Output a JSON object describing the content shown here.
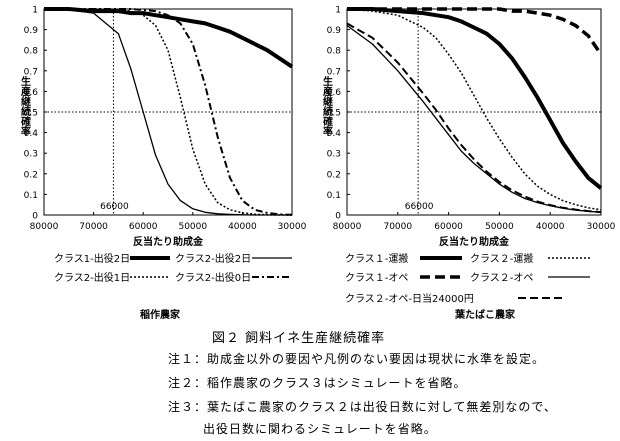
{
  "figure": {
    "title": "図２ 飼料イネ生産継続確率",
    "notes": [
      "注１：助成金以外の要因や凡例のない要因は現状に水準を設定。",
      "注２：稲作農家のクラス３はシミュレートを省略。",
      "注３：葉たばこ農家のクラス２は出役日数に対して無差別なので、",
      "出役日数に関わるシミュレートを省略。"
    ]
  },
  "chart_data": [
    {
      "type": "line",
      "subtitle": "稲作農家",
      "xlabel": "反当たり助成金",
      "ylabel": "生産継続確率",
      "xlim": [
        80000,
        30000
      ],
      "ylim": [
        0,
        1
      ],
      "x_ticks": [
        "80000",
        "70000",
        "60000",
        "50000",
        "40000",
        "30000"
      ],
      "y_ticks": [
        "0",
        "0.1",
        "0.2",
        "0.3",
        "0.4",
        "0.5",
        "0.6",
        "0.7",
        "0.8",
        "0.9",
        "1"
      ],
      "reference": {
        "x": 66000,
        "x_label": "66000",
        "y": 0.5
      },
      "grid": false,
      "x": [
        80000,
        75000,
        70000,
        65000,
        62500,
        60000,
        57500,
        55000,
        52500,
        50000,
        47500,
        45000,
        42500,
        40000,
        37500,
        35000,
        32500,
        30000
      ],
      "series": [
        {
          "name": "クラス1-出役2日",
          "style": "thick",
          "values": [
            1.0,
            1.0,
            0.99,
            0.99,
            0.98,
            0.98,
            0.97,
            0.96,
            0.95,
            0.94,
            0.93,
            0.91,
            0.89,
            0.86,
            0.83,
            0.8,
            0.76,
            0.72
          ]
        },
        {
          "name": "クラス2-出役2日",
          "style": "solid",
          "values": [
            1.0,
            0.995,
            0.98,
            0.88,
            0.71,
            0.5,
            0.29,
            0.15,
            0.07,
            0.03,
            0.013,
            0.006,
            0.003,
            0.001,
            0.0,
            0.0,
            0.0,
            0.0
          ]
        },
        {
          "name": "クラス2-出役1日",
          "style": "dotted",
          "values": [
            1.0,
            1.0,
            1.0,
            0.995,
            0.99,
            0.97,
            0.92,
            0.8,
            0.57,
            0.32,
            0.15,
            0.06,
            0.025,
            0.01,
            0.004,
            0.001,
            0.0,
            0.0
          ]
        },
        {
          "name": "クラス2-出役0日",
          "style": "dashdot",
          "values": [
            1.0,
            1.0,
            1.0,
            1.0,
            1.0,
            0.995,
            0.99,
            0.97,
            0.93,
            0.83,
            0.63,
            0.38,
            0.18,
            0.07,
            0.025,
            0.01,
            0.003,
            0.001
          ]
        }
      ]
    },
    {
      "type": "line",
      "subtitle": "葉たばこ農家",
      "xlabel": "反当たり助成金",
      "ylabel": "生産継続確率",
      "xlim": [
        80000,
        30000
      ],
      "ylim": [
        0,
        1
      ],
      "x_ticks": [
        "80000",
        "70000",
        "60000",
        "50000",
        "40000",
        "30000"
      ],
      "y_ticks": [
        "0",
        "0.1",
        "0.2",
        "0.3",
        "0.4",
        "0.5",
        "0.6",
        "0.7",
        "0.8",
        "0.9",
        "1"
      ],
      "reference": {
        "x": 66000,
        "x_label": "66000",
        "y": 0.5
      },
      "grid": false,
      "x": [
        80000,
        75000,
        70000,
        65000,
        62500,
        60000,
        57500,
        55000,
        52500,
        50000,
        47500,
        45000,
        42500,
        40000,
        37500,
        35000,
        32500,
        30000
      ],
      "series": [
        {
          "name": "クラス１-運搬",
          "style": "thick",
          "values": [
            1.0,
            1.0,
            0.99,
            0.98,
            0.97,
            0.96,
            0.94,
            0.91,
            0.88,
            0.83,
            0.76,
            0.67,
            0.57,
            0.46,
            0.35,
            0.26,
            0.18,
            0.13
          ]
        },
        {
          "name": "クラス２-運搬",
          "style": "dotted",
          "values": [
            1.0,
            0.99,
            0.97,
            0.91,
            0.86,
            0.78,
            0.69,
            0.58,
            0.47,
            0.37,
            0.28,
            0.2,
            0.14,
            0.1,
            0.07,
            0.05,
            0.035,
            0.025
          ]
        },
        {
          "name": "クラス１-オペ",
          "style": "thickdash",
          "values": [
            1.0,
            1.0,
            1.0,
            1.0,
            1.0,
            1.0,
            1.0,
            1.0,
            1.0,
            1.0,
            0.99,
            0.99,
            0.98,
            0.97,
            0.95,
            0.92,
            0.87,
            0.78
          ]
        },
        {
          "name": "クラス２-オペ",
          "style": "solid",
          "values": [
            0.92,
            0.83,
            0.7,
            0.55,
            0.47,
            0.39,
            0.31,
            0.25,
            0.2,
            0.15,
            0.11,
            0.08,
            0.06,
            0.045,
            0.033,
            0.024,
            0.018,
            0.013
          ]
        },
        {
          "name": "クラス２-オペ-日当24000円",
          "style": "dash",
          "values": [
            0.93,
            0.86,
            0.74,
            0.59,
            0.51,
            0.42,
            0.34,
            0.27,
            0.21,
            0.16,
            0.12,
            0.09,
            0.065,
            0.048,
            0.035,
            0.026,
            0.019,
            0.014
          ]
        }
      ]
    }
  ]
}
